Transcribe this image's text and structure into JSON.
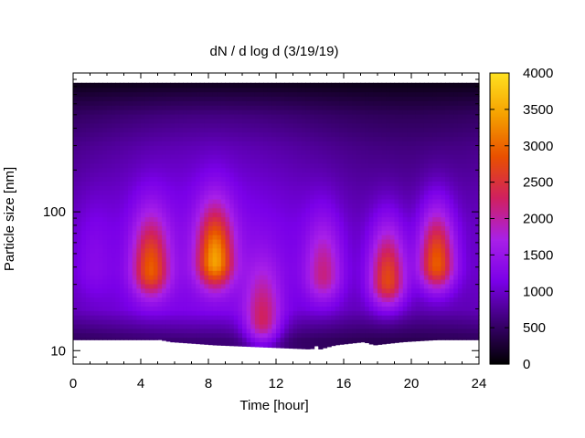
{
  "chart_data": {
    "type": "heatmap",
    "title": "dN / d log d (3/19/19)",
    "xlabel": "Time [hour]",
    "ylabel": "Particle size [nm]",
    "xlim": [
      0,
      24
    ],
    "ylim": [
      8,
      1000
    ],
    "yscale": "log",
    "x_ticks": [
      0,
      4,
      8,
      12,
      16,
      20,
      24
    ],
    "x_tick_labels": [
      "0",
      "4",
      "8",
      "12",
      "16",
      "20",
      "24"
    ],
    "y_ticks": [
      10,
      100
    ],
    "y_tick_labels": [
      "10",
      "100"
    ],
    "colorbar": {
      "range": [
        0,
        4000
      ],
      "ticks": [
        0,
        500,
        1000,
        1500,
        2000,
        2500,
        3000,
        3500,
        4000
      ],
      "tick_labels": [
        "0",
        "500",
        "1000",
        "1500",
        "2000",
        "2500",
        "3000",
        "3500",
        "4000"
      ],
      "palette": [
        "#000000",
        "#3a0070",
        "#7a00e8",
        "#a820e8",
        "#d02060",
        "#e85000",
        "#f5a000",
        "#ffe020"
      ]
    },
    "data_range_nm": [
      12,
      850
    ],
    "base_level": {
      "note": "background concentration by size region",
      "size_nm": [
        12,
        20,
        40,
        80,
        150,
        300,
        500,
        700,
        850
      ],
      "value": [
        600,
        1200,
        1300,
        1250,
        1100,
        900,
        650,
        350,
        150
      ]
    },
    "plumes": [
      {
        "time_h": 1.3,
        "size_nm": 40,
        "peak": 1300
      },
      {
        "time_h": 4.6,
        "size_nm": 38,
        "peak": 2950
      },
      {
        "time_h": 8.4,
        "size_nm": 44,
        "peak": 3450
      },
      {
        "time_h": 11.2,
        "size_nm": 17,
        "peak": 2300
      },
      {
        "time_h": 14.8,
        "size_nm": 35,
        "peak": 2150
      },
      {
        "time_h": 18.6,
        "size_nm": 32,
        "peak": 2750
      },
      {
        "time_h": 21.5,
        "size_nm": 42,
        "peak": 2950
      }
    ],
    "lower_edge": {
      "time_h": [
        0,
        4.9,
        5,
        5.8,
        8.4,
        13.9,
        14,
        14.1,
        14.4,
        14.5,
        15.5,
        17.2,
        17.8,
        19.5,
        21.5,
        24
      ],
      "size_nm": [
        12,
        12,
        12.1,
        11.6,
        11.0,
        10.3,
        10.9,
        10.3,
        10.9,
        10.2,
        11.0,
        11.6,
        11.0,
        11.6,
        12,
        12
      ]
    }
  }
}
